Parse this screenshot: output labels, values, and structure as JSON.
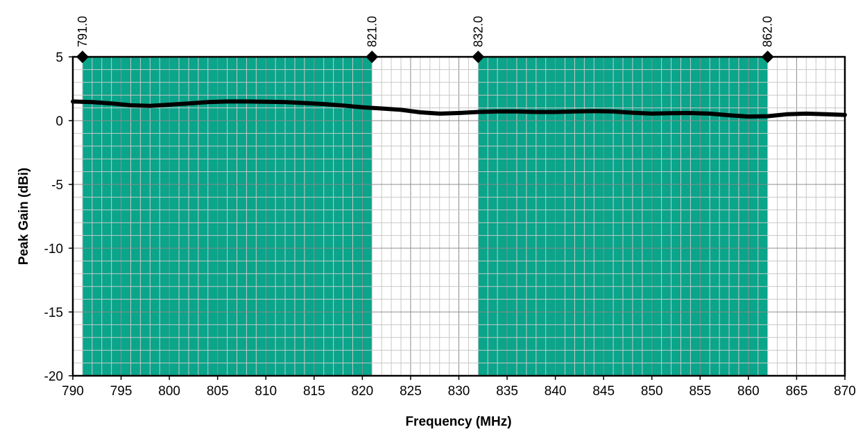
{
  "chart_data": {
    "type": "line",
    "title": "",
    "xlabel": "Frequency (MHz)",
    "ylabel": "Peak Gain (dBi)",
    "xlim": [
      790,
      870
    ],
    "ylim": [
      -20,
      5
    ],
    "x_ticks": [
      790,
      795,
      800,
      805,
      810,
      815,
      820,
      825,
      830,
      835,
      840,
      845,
      850,
      855,
      860,
      865,
      870
    ],
    "y_ticks": [
      5,
      0,
      -5,
      -10,
      -15,
      -20
    ],
    "grid": true,
    "bands": [
      {
        "start": 791.0,
        "end": 821.0,
        "color": "#0aa58a"
      },
      {
        "start": 832.0,
        "end": 862.0,
        "color": "#0aa58a"
      }
    ],
    "markers": [
      {
        "x": 791.0,
        "label": "791.0"
      },
      {
        "x": 821.0,
        "label": "821.0"
      },
      {
        "x": 832.0,
        "label": "832.0"
      },
      {
        "x": 862.0,
        "label": "862.0"
      }
    ],
    "series": [
      {
        "color": "#000000",
        "x": [
          790,
          792,
          794,
          796,
          798,
          800,
          802,
          804,
          806,
          808,
          810,
          812,
          814,
          816,
          818,
          820,
          822,
          824,
          826,
          828,
          830,
          832,
          834,
          836,
          838,
          840,
          842,
          844,
          846,
          848,
          850,
          852,
          854,
          856,
          858,
          860,
          862,
          864,
          866,
          868,
          870
        ],
        "y": [
          1.5,
          1.45,
          1.35,
          1.2,
          1.15,
          1.25,
          1.35,
          1.45,
          1.5,
          1.5,
          1.48,
          1.45,
          1.38,
          1.3,
          1.18,
          1.05,
          0.95,
          0.85,
          0.65,
          0.55,
          0.6,
          0.68,
          0.72,
          0.72,
          0.68,
          0.68,
          0.72,
          0.75,
          0.72,
          0.62,
          0.55,
          0.58,
          0.6,
          0.55,
          0.42,
          0.32,
          0.35,
          0.5,
          0.55,
          0.5,
          0.45
        ]
      }
    ]
  }
}
